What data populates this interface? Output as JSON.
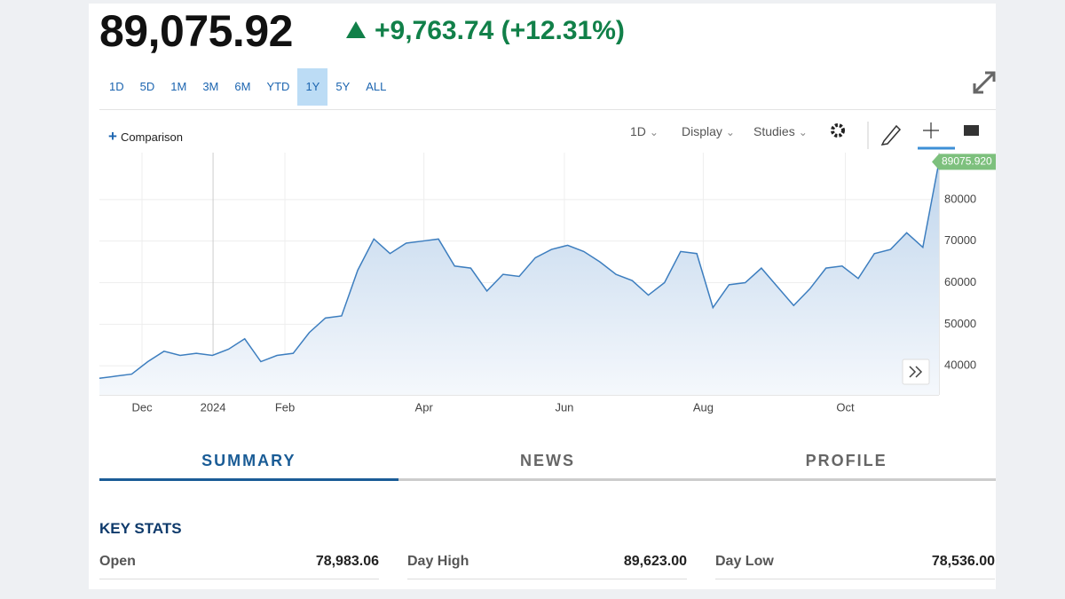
{
  "header": {
    "price": "89,075.92",
    "change": "+9,763.74 (+12.31%)"
  },
  "range_buttons": {
    "items": [
      "1D",
      "5D",
      "1M",
      "3M",
      "6M",
      "YTD",
      "1Y",
      "5Y",
      "ALL"
    ],
    "active": "1Y"
  },
  "toolbar": {
    "comparison": "Comparison",
    "interval": "1D",
    "display": "Display",
    "studies": "Studies"
  },
  "chart_data": {
    "type": "area",
    "color": "#3d7ebf",
    "values": [
      37000,
      37500,
      38000,
      41000,
      43500,
      42500,
      43000,
      42500,
      44000,
      46500,
      41000,
      42500,
      43000,
      48000,
      51500,
      52000,
      63000,
      70500,
      67000,
      69500,
      70000,
      70500,
      64000,
      63500,
      58000,
      62000,
      61500,
      66000,
      68000,
      69000,
      67500,
      65000,
      62000,
      60500,
      57000,
      60000,
      67500,
      67000,
      54000,
      59500,
      60000,
      63500,
      59000,
      54500,
      58500,
      63500,
      64000,
      61000,
      67000,
      68000,
      72000,
      68500,
      89075.92
    ],
    "last_label": "89075.920",
    "xlim": [
      0,
      52
    ],
    "xticks": [
      {
        "value": 2.64,
        "label": "Dec"
      },
      {
        "value": 7.04,
        "label": "2024"
      },
      {
        "value": 11.49,
        "label": "Feb"
      },
      {
        "value": 20.1,
        "label": "Apr"
      },
      {
        "value": 28.8,
        "label": "Jun"
      },
      {
        "value": 37.4,
        "label": "Aug"
      },
      {
        "value": 46.2,
        "label": "Oct"
      }
    ],
    "ylim": [
      33000,
      90000
    ],
    "yticks": [
      40000,
      50000,
      60000,
      70000,
      80000
    ],
    "grid": true
  },
  "tabs": {
    "items": [
      "SUMMARY",
      "NEWS",
      "PROFILE"
    ],
    "active": "SUMMARY"
  },
  "key_stats": {
    "title": "KEY STATS",
    "rows": [
      {
        "label": "Open",
        "value": "78,983.06"
      },
      {
        "label": "Day High",
        "value": "89,623.00"
      },
      {
        "label": "Day Low",
        "value": "78,536.00"
      }
    ]
  }
}
